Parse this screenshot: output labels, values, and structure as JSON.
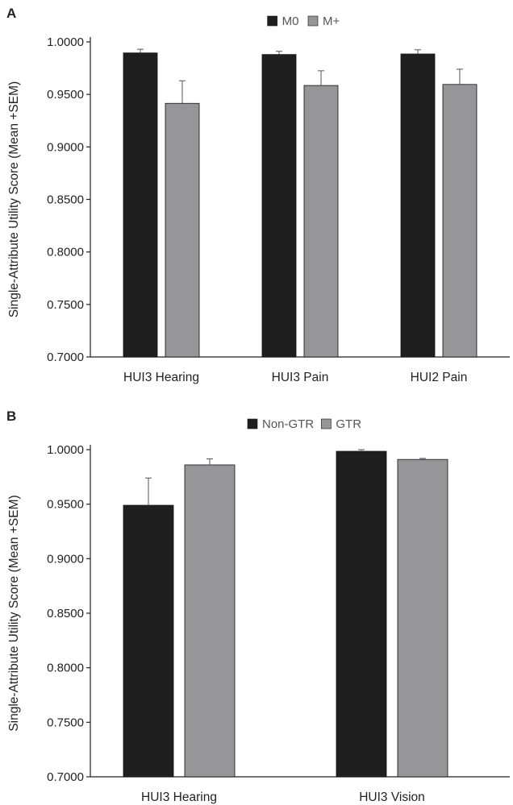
{
  "colors": {
    "series_1": "#1f1f1f",
    "series_2": "#969699",
    "axis": "#222222",
    "text": "#222222"
  },
  "chart_data": [
    {
      "panel_label": "A",
      "type": "bar",
      "ylabel": "Single-Attribute Utility Score (Mean +SEM)",
      "ylim": [
        0.7,
        1.0
      ],
      "yticks": [
        "0.7000",
        "0.7500",
        "0.8000",
        "0.8500",
        "0.9000",
        "0.9500",
        "1.0000"
      ],
      "categories": [
        "HUI3 Hearing",
        "HUI3 Pain",
        "HUI2 Pain"
      ],
      "legend_position": "top",
      "grid": false,
      "series": [
        {
          "name": "M0",
          "values": [
            0.9895,
            0.988,
            0.9885
          ],
          "errors": [
            0.0035,
            0.003,
            0.004
          ]
        },
        {
          "name": "M+",
          "values": [
            0.9415,
            0.9585,
            0.9595
          ],
          "errors": [
            0.0215,
            0.014,
            0.0145
          ]
        }
      ]
    },
    {
      "panel_label": "B",
      "type": "bar",
      "ylabel": "Single-Attribute Utility Score (Mean +SEM)",
      "ylim": [
        0.7,
        1.0
      ],
      "yticks": [
        "0.7000",
        "0.7500",
        "0.8000",
        "0.8500",
        "0.9000",
        "0.9500",
        "1.0000"
      ],
      "categories": [
        "HUI3 Hearing",
        "HUI3 Vision"
      ],
      "legend_position": "top",
      "grid": false,
      "series": [
        {
          "name": "Non-GTR",
          "values": [
            0.949,
            0.9985
          ],
          "errors": [
            0.025,
            0.0015
          ]
        },
        {
          "name": "GTR",
          "values": [
            0.986,
            0.991
          ],
          "errors": [
            0.0055,
            0.001
          ]
        }
      ]
    }
  ]
}
